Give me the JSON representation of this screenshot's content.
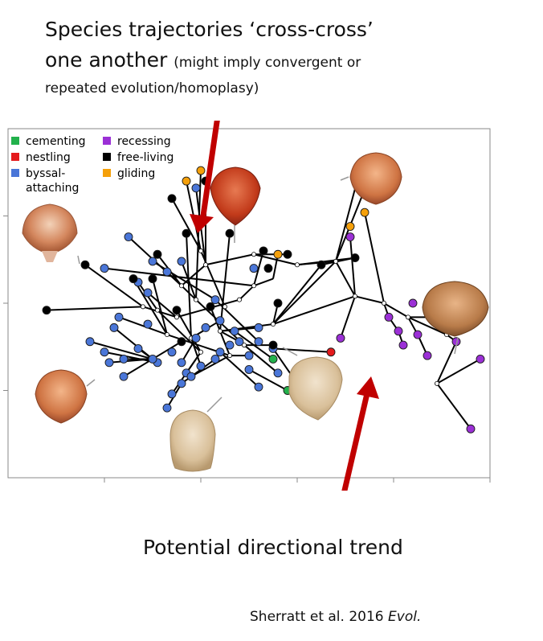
{
  "annotations": {
    "headline_main": "Species trajectories ‘cross-cross’",
    "headline_line2": "one another",
    "headline_note": "(might imply convergent or",
    "headline_line3": "repeated evolution/homoplasy)",
    "trend": "Potential directional trend",
    "citation_authors": "Sherratt et al. 2016 ",
    "citation_journal": "Evol."
  },
  "colors": {
    "cementing": "#22b14c",
    "nestling": "#e41a1c",
    "byssal": "#4a76d8",
    "recessing": "#9b30d6",
    "free_living": "#000000",
    "gliding": "#f5a00a",
    "arrow": "#c00000",
    "node": "#ffffff"
  },
  "chart_data": {
    "type": "scatter",
    "description_kind": "phylomorphospace",
    "xlim": [
      0,
      10
    ],
    "ylim": [
      0,
      10
    ],
    "grid": false,
    "legend_position": "top-left",
    "legend": [
      {
        "key": "cementing",
        "label": "cementing"
      },
      {
        "key": "nestling",
        "label": "nestling"
      },
      {
        "key": "byssal",
        "label": "byssal-attaching"
      },
      {
        "key": "recessing",
        "label": "recessing"
      },
      {
        "key": "free_living",
        "label": "free-living"
      },
      {
        "key": "gliding",
        "label": "gliding"
      }
    ],
    "internal_nodes": [
      [
        5.1,
        6.4
      ],
      [
        4.1,
        6.1
      ],
      [
        3.6,
        5.5
      ],
      [
        3.9,
        5.1
      ],
      [
        3.5,
        4.6
      ],
      [
        4.5,
        4.9
      ],
      [
        5.1,
        5.5
      ],
      [
        6.0,
        6.1
      ],
      [
        4.0,
        6.5
      ],
      [
        3.8,
        4.0
      ],
      [
        3.1,
        4.8
      ],
      [
        4.4,
        4.2
      ],
      [
        4.9,
        3.8
      ],
      [
        3.3,
        4.1
      ],
      [
        2.8,
        4.9
      ],
      [
        4.0,
        3.6
      ],
      [
        4.6,
        3.5
      ],
      [
        5.5,
        4.4
      ],
      [
        7.2,
        5.2
      ],
      [
        6.8,
        6.2
      ],
      [
        7.8,
        5.0
      ],
      [
        8.3,
        4.6
      ],
      [
        9.1,
        4.1
      ],
      [
        8.9,
        2.7
      ],
      [
        4.8,
        5.1
      ]
    ],
    "byssal": [
      [
        3.9,
        8.3
      ],
      [
        2.5,
        6.9
      ],
      [
        2.0,
        6.0
      ],
      [
        2.7,
        5.6
      ],
      [
        2.3,
        4.6
      ],
      [
        2.9,
        5.3
      ],
      [
        3.3,
        5.9
      ],
      [
        3.6,
        6.2
      ],
      [
        1.7,
        3.9
      ],
      [
        3.4,
        3.6
      ],
      [
        2.9,
        4.4
      ],
      [
        3.1,
        3.3
      ],
      [
        2.4,
        3.4
      ],
      [
        2.1,
        3.3
      ],
      [
        2.7,
        3.7
      ],
      [
        3.6,
        3.3
      ],
      [
        4.4,
        4.5
      ],
      [
        4.1,
        4.3
      ],
      [
        4.0,
        3.2
      ],
      [
        3.7,
        3.0
      ],
      [
        3.4,
        2.4
      ],
      [
        3.8,
        2.9
      ],
      [
        4.6,
        3.8
      ],
      [
        4.3,
        5.1
      ],
      [
        5.0,
        3.5
      ],
      [
        4.8,
        3.9
      ],
      [
        4.3,
        3.4
      ],
      [
        4.7,
        4.2
      ],
      [
        5.2,
        4.3
      ],
      [
        5.1,
        6.0
      ],
      [
        5.6,
        3.0
      ],
      [
        3.0,
        6.2
      ],
      [
        3.3,
        2.0
      ],
      [
        2.2,
        4.3
      ],
      [
        5.2,
        2.6
      ],
      [
        2.4,
        2.9
      ],
      [
        3.9,
        4.0
      ],
      [
        5.0,
        3.1
      ],
      [
        3.6,
        2.7
      ],
      [
        5.5,
        3.7
      ],
      [
        4.4,
        3.6
      ],
      [
        3.0,
        3.4
      ],
      [
        6.2,
        2.3
      ],
      [
        5.2,
        3.9
      ],
      [
        2.0,
        3.6
      ]
    ],
    "free_living": [
      [
        4.1,
        8.5
      ],
      [
        3.4,
        8.0
      ],
      [
        3.7,
        7.0
      ],
      [
        4.6,
        7.0
      ],
      [
        5.3,
        6.5
      ],
      [
        5.8,
        6.4
      ],
      [
        1.6,
        6.1
      ],
      [
        2.6,
        5.7
      ],
      [
        3.0,
        5.7
      ],
      [
        0.8,
        4.8
      ],
      [
        3.5,
        4.8
      ],
      [
        5.4,
        6.0
      ],
      [
        6.5,
        6.1
      ],
      [
        7.2,
        6.3
      ],
      [
        4.2,
        4.9
      ],
      [
        5.5,
        3.8
      ],
      [
        3.6,
        3.9
      ],
      [
        5.6,
        5.0
      ],
      [
        3.1,
        6.4
      ]
    ],
    "gliding": [
      [
        3.7,
        8.5
      ],
      [
        4.0,
        8.8
      ],
      [
        7.3,
        8.8
      ],
      [
        7.5,
        8.6
      ],
      [
        7.4,
        7.6
      ],
      [
        7.1,
        7.2
      ],
      [
        5.6,
        6.4
      ]
    ],
    "recessing": [
      [
        7.1,
        6.9
      ],
      [
        6.9,
        4.0
      ],
      [
        7.9,
        4.6
      ],
      [
        8.1,
        4.2
      ],
      [
        8.4,
        5.0
      ],
      [
        8.8,
        4.6
      ],
      [
        8.2,
        3.8
      ],
      [
        8.7,
        3.5
      ],
      [
        8.5,
        4.1
      ],
      [
        9.8,
        3.4
      ],
      [
        9.3,
        3.9
      ],
      [
        9.6,
        1.4
      ]
    ],
    "nestling": [
      [
        6.7,
        3.6
      ]
    ],
    "cementing": [
      [
        5.5,
        3.4
      ],
      [
        5.8,
        2.5
      ]
    ],
    "edges": [
      [
        [
          3.9,
          8.3
        ],
        [
          4.1,
          6.1
        ]
      ],
      [
        [
          4.1,
          8.5
        ],
        [
          4.1,
          6.1
        ]
      ],
      [
        [
          3.4,
          8.0
        ],
        [
          4.0,
          6.5
        ]
      ],
      [
        [
          3.7,
          8.5
        ],
        [
          4.0,
          6.5
        ]
      ],
      [
        [
          4.0,
          8.8
        ],
        [
          3.9,
          5.1
        ]
      ],
      [
        [
          4.1,
          6.1
        ],
        [
          3.6,
          5.5
        ]
      ],
      [
        [
          4.0,
          6.5
        ],
        [
          4.5,
          4.9
        ]
      ],
      [
        [
          3.7,
          7.0
        ],
        [
          3.8,
          4.0
        ]
      ],
      [
        [
          4.6,
          7.0
        ],
        [
          4.4,
          4.2
        ]
      ],
      [
        [
          5.3,
          6.5
        ],
        [
          5.1,
          5.5
        ]
      ],
      [
        [
          5.8,
          6.4
        ],
        [
          5.1,
          6.4
        ]
      ],
      [
        [
          5.1,
          6.4
        ],
        [
          6.0,
          6.1
        ]
      ],
      [
        [
          6.0,
          6.1
        ],
        [
          7.2,
          6.3
        ]
      ],
      [
        [
          5.1,
          6.4
        ],
        [
          4.1,
          6.1
        ]
      ],
      [
        [
          1.6,
          6.1
        ],
        [
          2.8,
          4.9
        ]
      ],
      [
        [
          2.5,
          6.9
        ],
        [
          3.6,
          5.5
        ]
      ],
      [
        [
          2.0,
          6.0
        ],
        [
          5.1,
          5.5
        ]
      ],
      [
        [
          0.8,
          4.8
        ],
        [
          2.8,
          4.9
        ]
      ],
      [
        [
          2.8,
          4.9
        ],
        [
          3.5,
          4.6
        ]
      ],
      [
        [
          3.5,
          4.6
        ],
        [
          4.8,
          5.1
        ]
      ],
      [
        [
          4.8,
          5.1
        ],
        [
          5.1,
          5.5
        ]
      ],
      [
        [
          2.7,
          5.6
        ],
        [
          3.1,
          4.8
        ]
      ],
      [
        [
          2.6,
          5.7
        ],
        [
          3.3,
          4.1
        ]
      ],
      [
        [
          3.0,
          5.7
        ],
        [
          3.3,
          4.1
        ]
      ],
      [
        [
          2.9,
          5.3
        ],
        [
          3.5,
          4.6
        ]
      ],
      [
        [
          3.3,
          5.9
        ],
        [
          3.9,
          5.1
        ]
      ],
      [
        [
          3.6,
          6.2
        ],
        [
          3.9,
          5.1
        ]
      ],
      [
        [
          3.9,
          5.1
        ],
        [
          4.9,
          3.8
        ]
      ],
      [
        [
          3.1,
          4.8
        ],
        [
          4.0,
          3.6
        ]
      ],
      [
        [
          2.3,
          4.6
        ],
        [
          3.3,
          4.1
        ]
      ],
      [
        [
          3.3,
          4.1
        ],
        [
          4.6,
          3.5
        ]
      ],
      [
        [
          3.5,
          4.8
        ],
        [
          4.0,
          3.6
        ]
      ],
      [
        [
          4.2,
          4.9
        ],
        [
          4.6,
          3.5
        ]
      ],
      [
        [
          4.4,
          4.5
        ],
        [
          3.8,
          4.0
        ]
      ],
      [
        [
          3.8,
          4.0
        ],
        [
          4.0,
          3.2
        ]
      ],
      [
        [
          4.0,
          3.6
        ],
        [
          3.4,
          2.4
        ]
      ],
      [
        [
          4.0,
          3.6
        ],
        [
          3.7,
          3.0
        ]
      ],
      [
        [
          4.6,
          3.5
        ],
        [
          5.0,
          3.5
        ]
      ],
      [
        [
          4.6,
          3.5
        ],
        [
          3.8,
          2.9
        ]
      ],
      [
        [
          4.9,
          3.8
        ],
        [
          5.5,
          3.8
        ]
      ],
      [
        [
          4.9,
          3.8
        ],
        [
          5.6,
          3.0
        ]
      ],
      [
        [
          4.4,
          4.2
        ],
        [
          5.2,
          4.3
        ]
      ],
      [
        [
          4.4,
          4.2
        ],
        [
          4.8,
          3.9
        ]
      ],
      [
        [
          5.5,
          4.4
        ],
        [
          6.5,
          6.1
        ]
      ],
      [
        [
          5.5,
          4.4
        ],
        [
          4.4,
          4.2
        ]
      ],
      [
        [
          5.5,
          4.4
        ],
        [
          6.8,
          6.2
        ]
      ],
      [
        [
          6.8,
          6.2
        ],
        [
          7.3,
          8.8
        ]
      ],
      [
        [
          6.8,
          6.2
        ],
        [
          7.5,
          8.6
        ]
      ],
      [
        [
          6.0,
          6.1
        ],
        [
          6.8,
          6.2
        ]
      ],
      [
        [
          7.2,
          5.2
        ],
        [
          7.1,
          6.9
        ]
      ],
      [
        [
          7.2,
          5.2
        ],
        [
          6.8,
          6.2
        ]
      ],
      [
        [
          7.2,
          5.2
        ],
        [
          7.8,
          5.0
        ]
      ],
      [
        [
          7.8,
          5.0
        ],
        [
          7.4,
          7.6
        ]
      ],
      [
        [
          7.8,
          5.0
        ],
        [
          8.3,
          4.6
        ]
      ],
      [
        [
          7.8,
          5.0
        ],
        [
          7.9,
          4.6
        ]
      ],
      [
        [
          7.9,
          4.6
        ],
        [
          8.1,
          4.2
        ]
      ],
      [
        [
          8.1,
          4.2
        ],
        [
          8.2,
          3.8
        ]
      ],
      [
        [
          8.3,
          4.6
        ],
        [
          8.5,
          4.1
        ]
      ],
      [
        [
          8.5,
          4.1
        ],
        [
          8.7,
          3.5
        ]
      ],
      [
        [
          8.3,
          4.6
        ],
        [
          8.8,
          4.6
        ]
      ],
      [
        [
          8.3,
          4.6
        ],
        [
          9.1,
          4.1
        ]
      ],
      [
        [
          9.1,
          4.1
        ],
        [
          9.3,
          3.9
        ]
      ],
      [
        [
          9.3,
          3.9
        ],
        [
          8.9,
          2.7
        ]
      ],
      [
        [
          8.9,
          2.7
        ],
        [
          9.8,
          3.4
        ]
      ],
      [
        [
          8.9,
          2.7
        ],
        [
          9.6,
          1.4
        ]
      ],
      [
        [
          7.2,
          5.2
        ],
        [
          6.9,
          4.0
        ]
      ],
      [
        [
          7.2,
          5.2
        ],
        [
          5.5,
          4.4
        ]
      ],
      [
        [
          5.6,
          5.0
        ],
        [
          5.5,
          4.4
        ]
      ],
      [
        [
          5.6,
          6.4
        ],
        [
          5.5,
          5.7
        ]
      ],
      [
        [
          5.5,
          5.7
        ],
        [
          5.1,
          5.5
        ]
      ],
      [
        [
          5.5,
          3.4
        ],
        [
          4.7,
          4.2
        ]
      ],
      [
        [
          5.8,
          2.5
        ],
        [
          5.0,
          3.1
        ]
      ],
      [
        [
          5.2,
          2.6
        ],
        [
          4.4,
          3.6
        ]
      ],
      [
        [
          6.2,
          2.3
        ],
        [
          5.5,
          3.7
        ]
      ],
      [
        [
          5.5,
          3.7
        ],
        [
          6.7,
          3.6
        ]
      ],
      [
        [
          3.6,
          3.9
        ],
        [
          3.0,
          3.4
        ]
      ],
      [
        [
          3.0,
          3.4
        ],
        [
          2.1,
          3.3
        ]
      ],
      [
        [
          2.2,
          4.3
        ],
        [
          3.0,
          3.4
        ]
      ],
      [
        [
          2.4,
          3.4
        ],
        [
          3.0,
          3.4
        ]
      ],
      [
        [
          2.7,
          3.7
        ],
        [
          3.0,
          3.4
        ]
      ],
      [
        [
          1.7,
          3.9
        ],
        [
          3.0,
          3.4
        ]
      ],
      [
        [
          2.4,
          2.9
        ],
        [
          3.0,
          3.4
        ]
      ],
      [
        [
          3.3,
          2.0
        ],
        [
          3.6,
          2.7
        ]
      ],
      [
        [
          3.6,
          2.7
        ],
        [
          4.3,
          3.4
        ]
      ],
      [
        [
          3.9,
          4.0
        ],
        [
          3.6,
          3.3
        ]
      ],
      [
        [
          3.0,
          6.2
        ],
        [
          4.3,
          5.1
        ]
      ],
      [
        [
          4.3,
          5.1
        ],
        [
          5.2,
          3.9
        ]
      ],
      [
        [
          2.0,
          3.6
        ],
        [
          3.1,
          3.3
        ]
      ],
      [
        [
          3.1,
          6.4
        ],
        [
          3.6,
          5.5
        ]
      ],
      [
        [
          6.5,
          6.1
        ],
        [
          7.2,
          6.3
        ]
      ]
    ]
  }
}
